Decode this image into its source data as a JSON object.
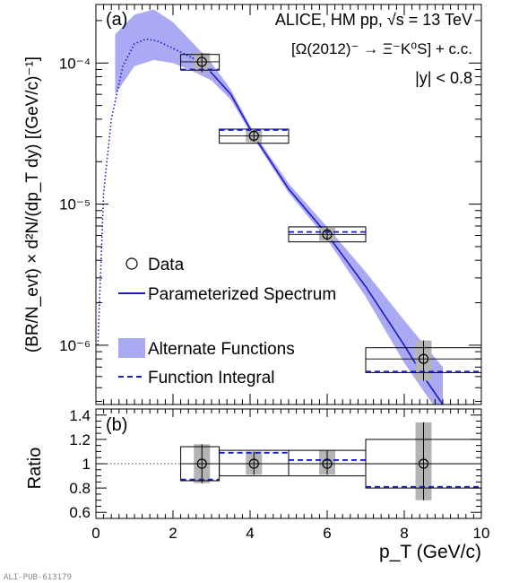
{
  "chart_data": [
    {
      "type": "scatter",
      "panel_label": "(a)",
      "annotations": [
        "ALICE, HM pp, √s = 13 TeV",
        "[Ω(2012)⁻ → Ξ⁻K⁰S] + c.c.",
        "|y| < 0.8"
      ],
      "xlim": [
        0,
        10
      ],
      "ylim": [
        3.8e-07,
        0.00026
      ],
      "log_y": true,
      "ylabel": "(BR/N_evt) × d²N/(dp_T dy) [(GeV/c)⁻¹]",
      "y_tick_labels": [
        "10⁻⁴",
        "10⁻⁵",
        "10⁻⁶"
      ],
      "legend_position": "lower-left",
      "legend": [
        "Data",
        "Parameterized Spectrum",
        "Alternate Functions",
        "Function Integral"
      ],
      "data": [
        {
          "x": 2.75,
          "y": 0.000102,
          "x_low": 2.2,
          "x_high": 3.2,
          "stat_low": 8.6e-05,
          "stat_high": 0.000118,
          "sys_low": 8.9e-05,
          "sys_high": 0.000115,
          "integral": 9e-05
        },
        {
          "x": 4.1,
          "y": 3.05e-05,
          "x_low": 3.2,
          "x_high": 5.0,
          "stat_low": 2.75e-05,
          "stat_high": 3.35e-05,
          "sys_low": 2.7e-05,
          "sys_high": 3.4e-05,
          "integral": 3.35e-05
        },
        {
          "x": 6.0,
          "y": 6.1e-06,
          "x_low": 5.0,
          "x_high": 7.0,
          "stat_low": 5.5e-06,
          "stat_high": 6.8e-06,
          "sys_low": 5.4e-06,
          "sys_high": 6.9e-06,
          "integral": 6.35e-06
        },
        {
          "x": 8.5,
          "y": 8e-07,
          "x_low": 7.0,
          "x_high": 10.0,
          "stat_low": 5.6e-07,
          "stat_high": 1.08e-06,
          "sys_low": 6.4e-07,
          "sys_high": 9.6e-07,
          "integral": 6.5e-07
        }
      ],
      "curve": {
        "x": [
          0.05,
          0.2,
          0.4,
          0.7,
          1.0,
          1.3,
          1.6,
          2.0,
          2.5,
          2.75,
          3.0,
          3.5,
          4.1,
          5.0,
          6.0,
          7.0,
          8.0,
          8.5,
          9.0
        ],
        "y": [
          1e-06,
          1.2e-05,
          4e-05,
          9.5e-05,
          0.000137,
          0.000148,
          0.000143,
          0.000127,
          0.000109,
          0.0001,
          8.5e-05,
          6e-05,
          3.05e-05,
          1.28e-05,
          6.1e-06,
          2.6e-06,
          1e-06,
          6e-07,
          3.8e-07
        ],
        "solid_from_x": 2.2
      },
      "band": {
        "x": [
          0.5,
          1.0,
          1.5,
          2.0,
          2.5,
          3.0,
          3.5,
          4.1,
          5.0,
          6.0,
          7.0,
          8.0,
          9.0
        ],
        "low": [
          6e-05,
          9.5e-05,
          0.000105,
          0.0001,
          8.8e-05,
          7.5e-05,
          5.5e-05,
          2.9e-05,
          1.2e-05,
          5.6e-06,
          2.2e-06,
          7.5e-07,
          3e-07
        ],
        "high": [
          0.00016,
          0.00022,
          0.00024,
          0.000195,
          0.00014,
          0.0001,
          6.5e-05,
          3.2e-05,
          1.4e-05,
          6.9e-06,
          3.3e-06,
          1.5e-06,
          7e-07
        ]
      }
    },
    {
      "type": "scatter",
      "panel_label": "(b)",
      "xlim": [
        0,
        10
      ],
      "ylim": [
        0.55,
        1.45
      ],
      "xlabel": "p_T (GeV/c)",
      "ylabel": "Ratio",
      "x_tick_labels": [
        "0",
        "2",
        "4",
        "6",
        "8",
        "10"
      ],
      "y_tick_labels": [
        "0.6",
        "0.8",
        "1",
        "1.2",
        "1.4"
      ],
      "reference_line": 1,
      "data": [
        {
          "x": 2.75,
          "y": 1.0,
          "x_low": 2.2,
          "x_high": 3.2,
          "stat_low": 0.84,
          "stat_high": 1.16,
          "sys_low": 0.86,
          "sys_high": 1.14,
          "integral": 0.87
        },
        {
          "x": 4.1,
          "y": 1.0,
          "x_low": 3.2,
          "x_high": 5.0,
          "stat_low": 0.91,
          "stat_high": 1.1,
          "sys_low": 0.9,
          "sys_high": 1.11,
          "integral": 1.09
        },
        {
          "x": 6.0,
          "y": 1.0,
          "x_low": 5.0,
          "x_high": 7.0,
          "stat_low": 0.91,
          "stat_high": 1.11,
          "sys_low": 0.9,
          "sys_high": 1.11,
          "integral": 1.03
        },
        {
          "x": 8.5,
          "y": 1.0,
          "x_low": 7.0,
          "x_high": 10.0,
          "stat_low": 0.7,
          "stat_high": 1.34,
          "sys_low": 0.8,
          "sys_high": 1.2,
          "integral": 0.81
        }
      ]
    }
  ],
  "footer_label": "ALI-PUB-613179",
  "colors": {
    "band": "#aaaaf4",
    "curve": "#1a1acc",
    "integral": "#1a1acc",
    "stat_box": "#b4b4b4"
  }
}
